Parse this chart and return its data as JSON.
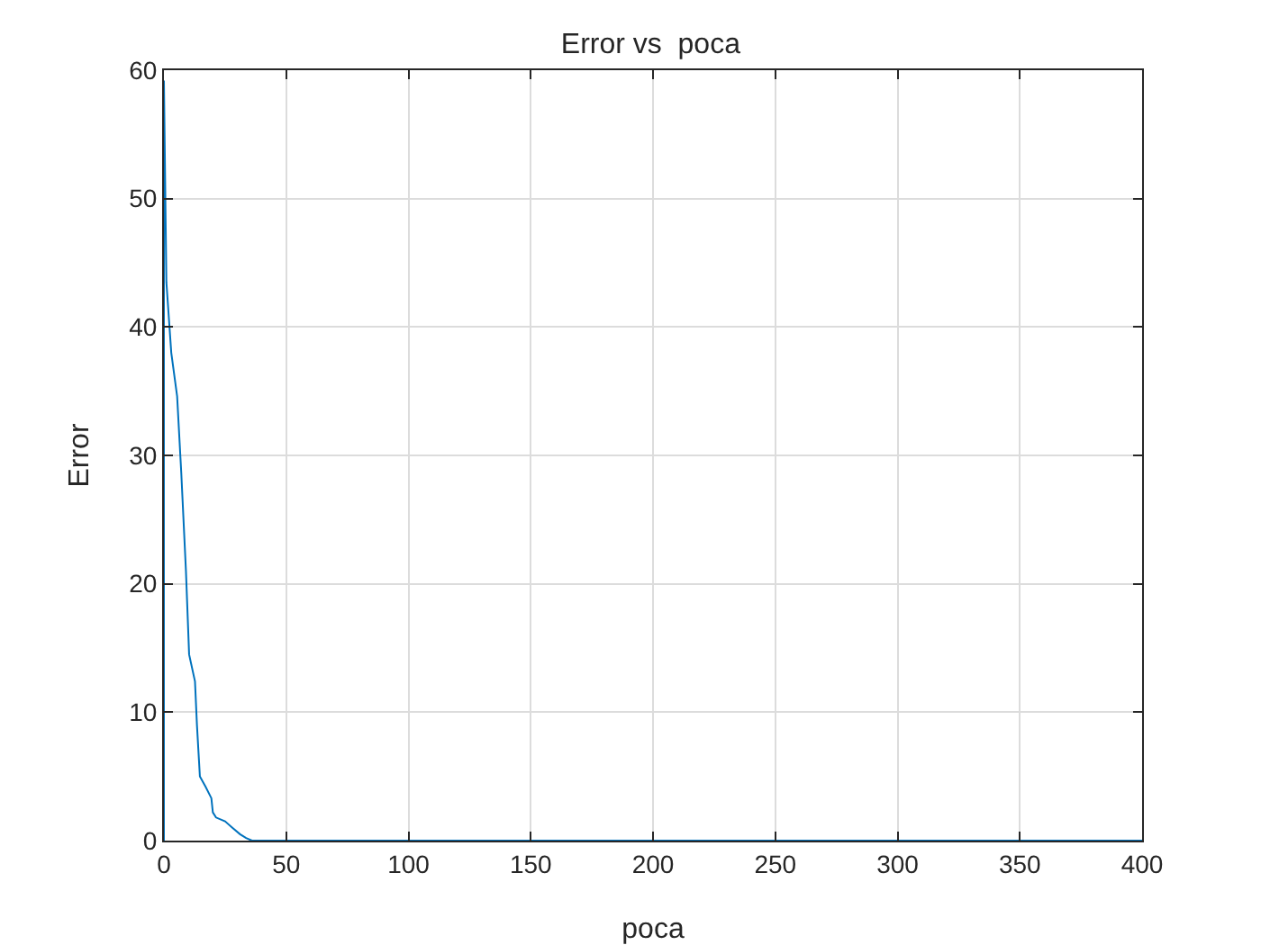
{
  "chart_data": {
    "type": "line",
    "title": "Error vs  poca",
    "xlabel": "poca",
    "ylabel": "Error",
    "series": [
      {
        "color": "#0072bd",
        "x": [
          0,
          0,
          1,
          3,
          5.4,
          7.1,
          9,
          10.3,
          12.7,
          13.5,
          14.7,
          17,
          19.4,
          20,
          21.3,
          25,
          28,
          31.1,
          33.6,
          36,
          50,
          100,
          200,
          300,
          400
        ],
        "values": [
          0,
          59.2,
          43.5,
          38,
          34.6,
          28.6,
          21,
          14.5,
          12.4,
          9,
          5,
          4.2,
          3.3,
          2.2,
          1.8,
          1.5,
          1,
          0.5,
          0.2,
          0,
          0,
          0,
          0,
          0,
          0
        ]
      }
    ],
    "xlim": [
      0,
      400
    ],
    "xticks": [
      0,
      50,
      100,
      150,
      200,
      250,
      300,
      350,
      400
    ],
    "ylim": [
      0,
      60
    ],
    "yticks": [
      0,
      10,
      20,
      30,
      40,
      50,
      60
    ],
    "grid": true,
    "marker": "none",
    "line_style": "solid"
  }
}
